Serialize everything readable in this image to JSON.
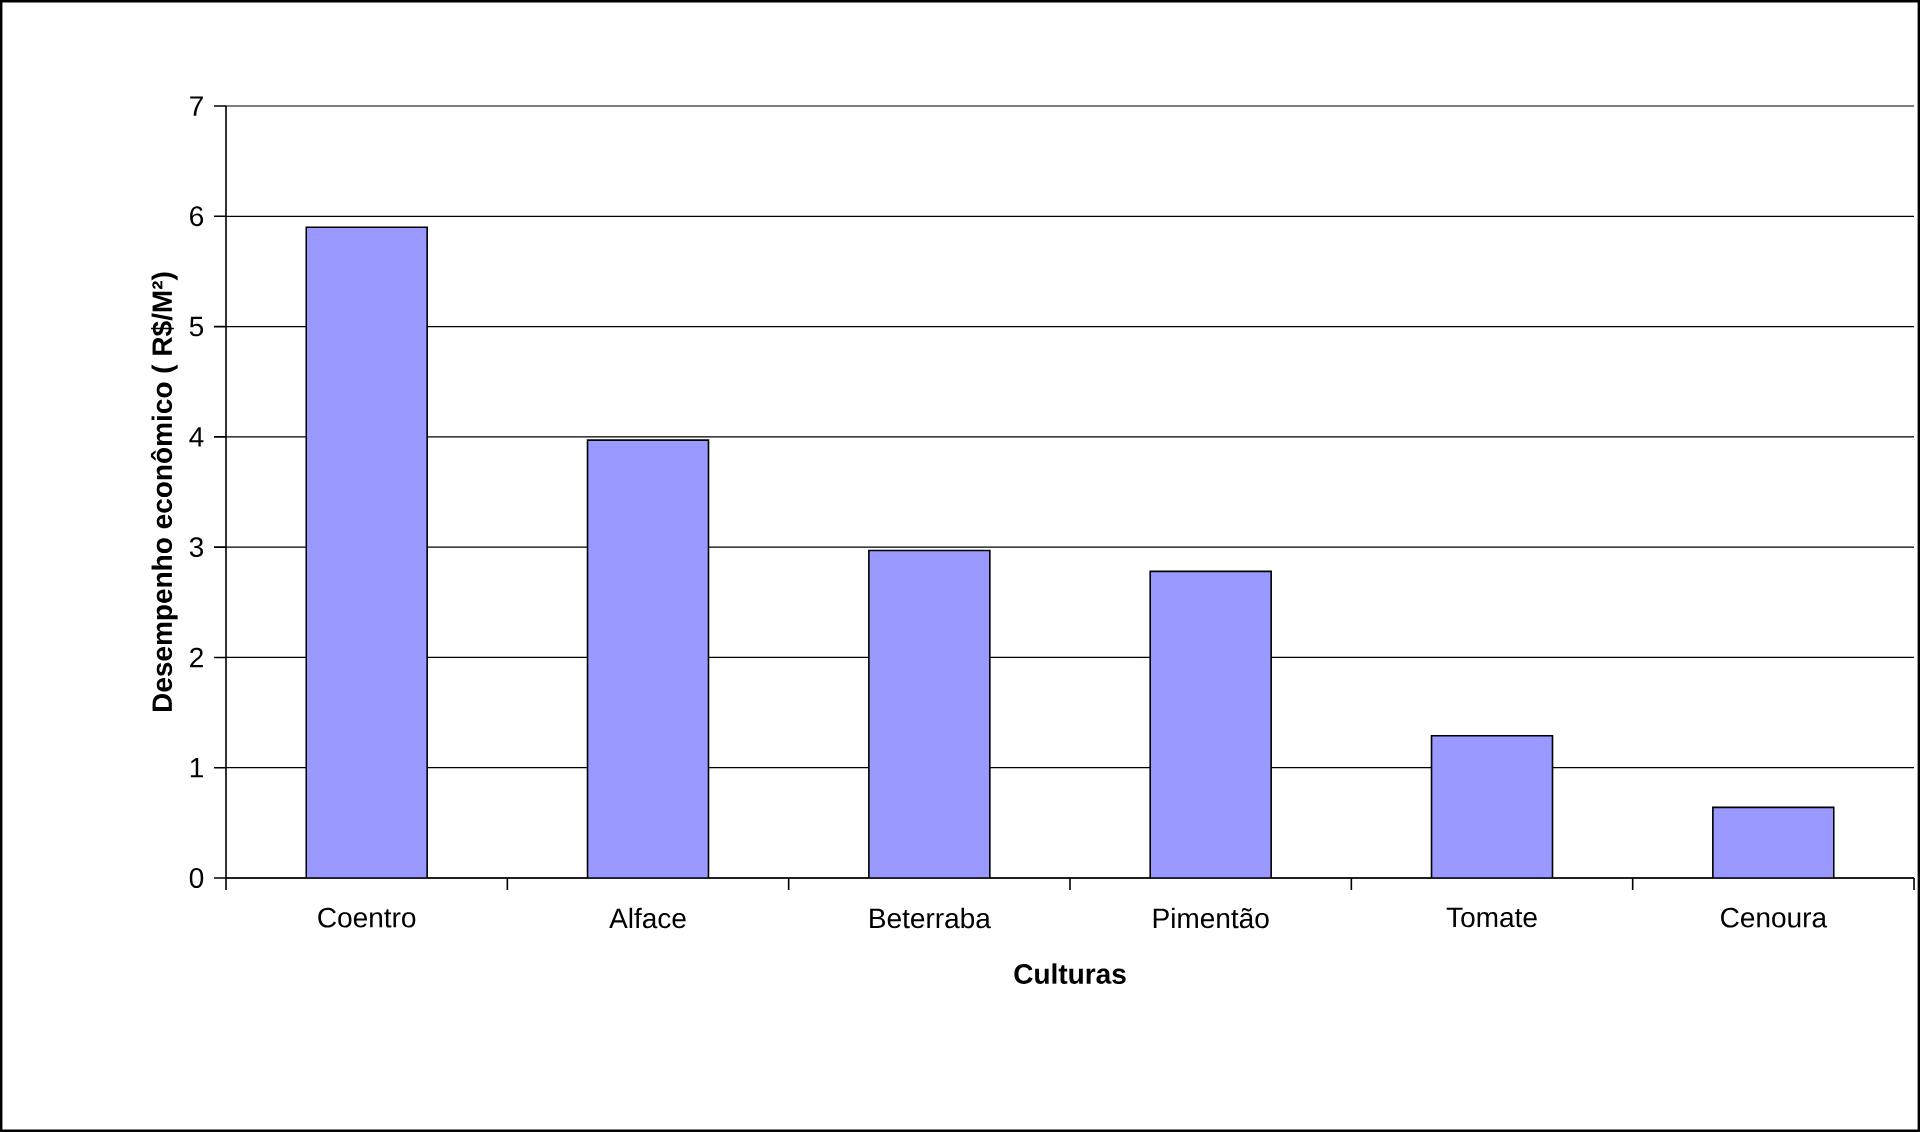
{
  "chart_data": {
    "type": "bar",
    "xlabel": "Culturas",
    "ylabel": "Desempenho econômico ( R$/M²)",
    "categories": [
      "Coentro",
      "Alface",
      "Beterraba",
      "Pimentão",
      "Tomate",
      "Cenoura"
    ],
    "values": [
      5.9,
      3.97,
      2.97,
      2.78,
      1.29,
      0.64
    ],
    "color": "#9999ff",
    "ylim": [
      0,
      7
    ],
    "yticks": [
      0,
      1,
      2,
      3,
      4,
      5,
      6,
      7
    ],
    "grid": "y"
  }
}
